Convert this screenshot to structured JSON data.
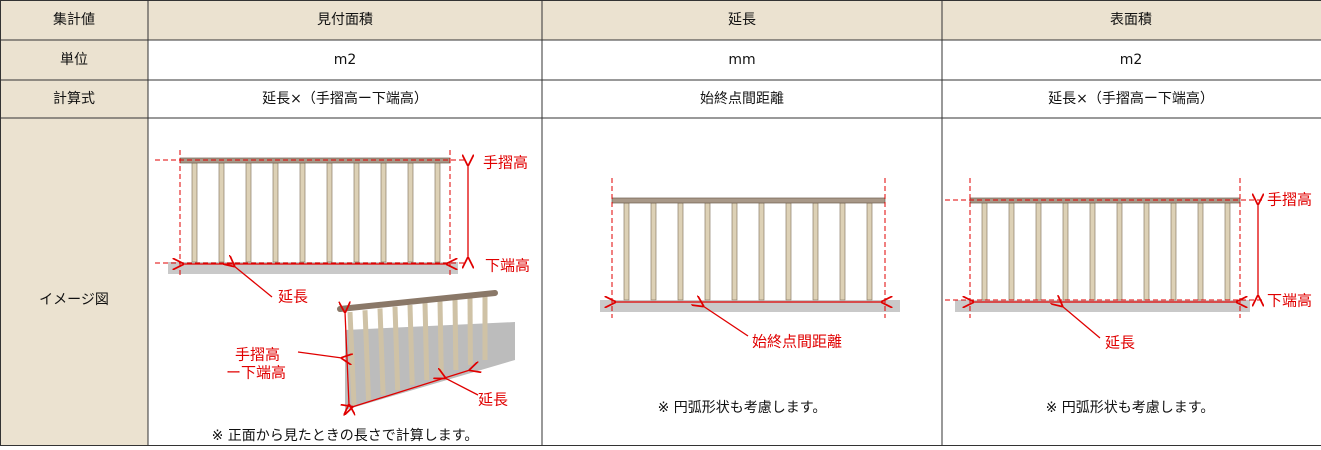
{
  "table": {
    "header": [
      "集計値",
      "見付面積",
      "延長",
      "表面積"
    ],
    "rows": [
      [
        "単位",
        "m2",
        "mm",
        "m2"
      ],
      [
        "計算式",
        "延長×（手摺高ー下端高）",
        "始終点間距離",
        "延長×（手摺高ー下端高）"
      ]
    ]
  },
  "image_row": {
    "label": "イメージ図",
    "cells": [
      {
        "labels": [
          "手摺高",
          "下端高",
          "延長",
          "手摺高",
          "ー下端高",
          "延長"
        ],
        "note": "※ 正面から見たときの長さで計算します。"
      },
      {
        "labels": [
          "始終点間距離"
        ],
        "note": "※ 円弧形状も考慮します。"
      },
      {
        "labels": [
          "手摺高",
          "下端高",
          "延長"
        ],
        "note": "※ 円弧形状も考慮します。"
      }
    ]
  }
}
